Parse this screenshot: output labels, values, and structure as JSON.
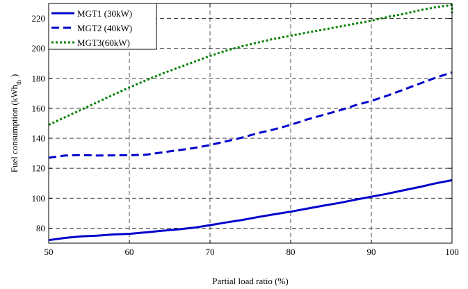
{
  "chart_data": {
    "type": "line",
    "xlabel": "Partial load ratio (%)",
    "ylabel": "Fuel consumption (kWh",
    "ylabel_sub": "th",
    "ylabel_close": ")",
    "xlim": [
      50,
      100
    ],
    "ylim": [
      70,
      230
    ],
    "x_ticks": [
      50,
      60,
      70,
      80,
      90,
      100
    ],
    "y_ticks": [
      80,
      100,
      120,
      140,
      160,
      180,
      200,
      220
    ],
    "grid": true,
    "legend_position": "top-left",
    "series": [
      {
        "name": "MGT1 (30kW)",
        "color": "#0000cc",
        "line_style": "solid",
        "x": [
          50,
          52,
          54,
          56,
          58,
          60,
          62,
          64,
          66,
          68,
          70,
          72,
          74,
          76,
          78,
          80,
          82,
          84,
          86,
          88,
          90,
          92,
          94,
          96,
          98,
          100
        ],
        "y": [
          72,
          73.5,
          74.5,
          75,
          75.8,
          76.2,
          77.2,
          78.2,
          79.2,
          80.3,
          82,
          83.8,
          85.5,
          87.5,
          89.3,
          91,
          93,
          95,
          96.8,
          99,
          101,
          103,
          105.3,
          107.5,
          110,
          112
        ]
      },
      {
        "name": "MGT2 (40kW)",
        "color": "#0000cc",
        "line_style": "dashed",
        "x": [
          50,
          52,
          54,
          56,
          58,
          60,
          62,
          64,
          66,
          68,
          70,
          72,
          74,
          76,
          78,
          80,
          82,
          84,
          86,
          88,
          90,
          92,
          94,
          96,
          98,
          100
        ],
        "y": [
          127,
          128.5,
          128.8,
          128.5,
          128.6,
          128.7,
          129,
          130.5,
          132,
          133.5,
          135.5,
          138,
          140.5,
          143.5,
          146,
          149,
          152.5,
          155.5,
          158.5,
          162,
          165,
          168.5,
          172.5,
          176.5,
          180.5,
          184
        ]
      },
      {
        "name": "MGT3(60kW)",
        "color": "#008000",
        "line_style": "dotted",
        "x": [
          50,
          52,
          54,
          56,
          58,
          60,
          62,
          64,
          66,
          68,
          70,
          72,
          74,
          76,
          78,
          80,
          82,
          84,
          86,
          88,
          90,
          92,
          94,
          96,
          98,
          100,
          100
        ],
        "y": [
          149,
          154,
          159,
          164,
          169,
          174,
          178.5,
          183,
          187,
          191,
          195,
          198.5,
          201.5,
          204,
          206.5,
          208.5,
          210.5,
          212.5,
          214.5,
          216.5,
          218.5,
          221,
          223,
          225.5,
          227.5,
          229,
          223.5
        ]
      }
    ]
  }
}
